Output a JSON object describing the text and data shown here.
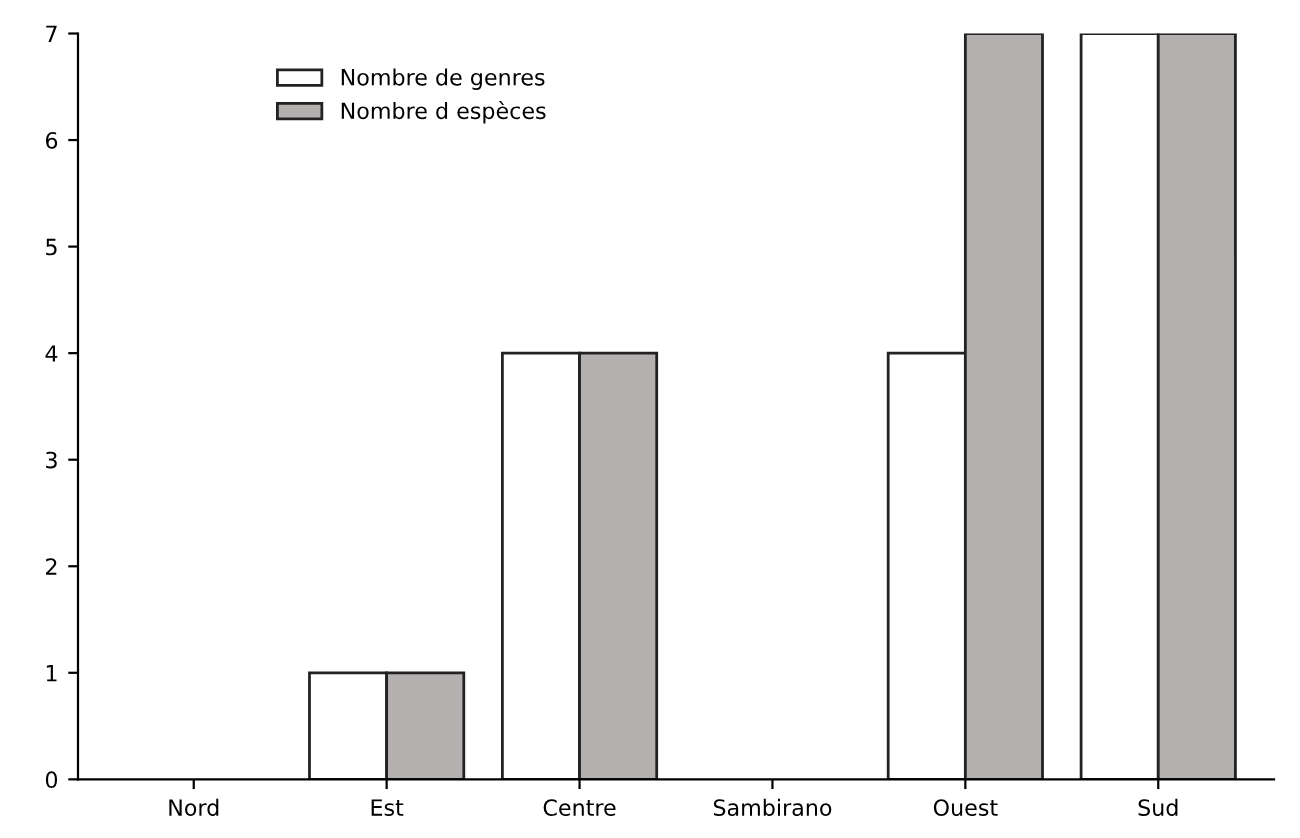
{
  "chart_data": {
    "type": "bar",
    "categories": [
      "Nord",
      "Est",
      "Centre",
      "Sambirano",
      "Ouest",
      "Sud"
    ],
    "series": [
      {
        "name": "Nombre de genres",
        "color": "#ffffff",
        "values": [
          0,
          1,
          4,
          0,
          4,
          7
        ]
      },
      {
        "name": "Nombre d espèces",
        "color": "#b4b0b0",
        "values": [
          0,
          1,
          4,
          0,
          7,
          7
        ]
      }
    ],
    "ylim": [
      0,
      7
    ],
    "yticks": [
      0,
      1,
      2,
      3,
      4,
      5,
      6,
      7
    ],
    "grid": false,
    "legend": "top left"
  }
}
